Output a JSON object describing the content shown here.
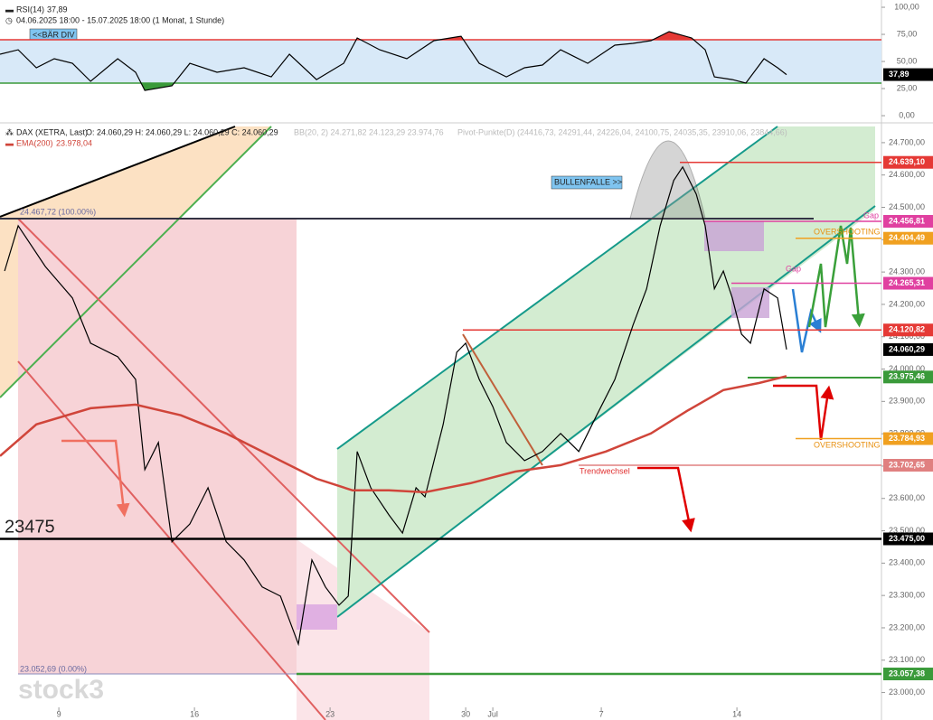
{
  "chart_data": [
    {
      "type": "line",
      "title": "RSI(14)",
      "subtitle": "04.06.2025 18:00 - 15.07.2025 18:00 (1 Monat, 1 Stunde)",
      "annotations": [
        "<<BÄR DIV"
      ],
      "xlim": [
        0.83,
        33.33
      ],
      "ylim": [
        -5.8,
        106.7
      ],
      "yticks": [
        {
          "value": 100,
          "label": "100,00"
        },
        {
          "value": 75,
          "label": "75,00"
        },
        {
          "value": 50,
          "label": "50,00"
        },
        {
          "value": 25,
          "label": "25,00"
        },
        {
          "value": 0,
          "label": "0,00"
        }
      ],
      "levels": [
        {
          "value": 70,
          "color": "#e53935"
        },
        {
          "value": 30,
          "color": "#3a9a3a"
        }
      ],
      "series": [
        {
          "name": "RSI(14)",
          "color": "#000000",
          "last_label": "37,89",
          "x": [
            0.83,
            1.5,
            2.17,
            2.83,
            3.5,
            4.17,
            5.17,
            5.83,
            6.17,
            7.17,
            7.83,
            8.83,
            9.83,
            10.83,
            11.5,
            12.5,
            13.5,
            14.0,
            14.83,
            15.83,
            16.83,
            17.83,
            18.5,
            19.5,
            20.17,
            20.83,
            21.5,
            22.5,
            23.5,
            24.17,
            24.83,
            25.5,
            26.33,
            26.83,
            27.17,
            27.83,
            28.33,
            29.0,
            29.5,
            29.83
          ],
          "values": [
            56.7,
            60.8,
            44.2,
            52.5,
            48.3,
            31.7,
            52.5,
            40,
            23.3,
            27.5,
            48.3,
            40,
            44.2,
            35.8,
            56.7,
            33.3,
            48.3,
            71.7,
            60.8,
            52.5,
            69.2,
            73.3,
            48.3,
            35.8,
            44.2,
            46.7,
            60.8,
            48.3,
            65,
            66.7,
            69.2,
            77.5,
            71.7,
            60.8,
            35.8,
            33.3,
            30,
            52.5,
            44.2,
            37.89
          ]
        }
      ]
    },
    {
      "type": "line",
      "title": "DAX (XETRA, Last)",
      "ohlc": "O: 24.060,29 H: 24.060,29 L: 24.060,29 C: 24.060,29",
      "indicators": [
        "BB(20, 2)  24.271,82  24.123,29  23.974,76",
        "Pivot-Punkte(D) (24416,73, 24291,44, 24226,04, 24100,75, 24035,35, 23910,06, 23844,66)"
      ],
      "annotations": [
        "24.467,72 (100.00%)",
        "23.052,69 (0.00%)",
        "23475",
        "BULLENFALLE >>",
        "Gap",
        "Gap",
        "OVERSHOOTING",
        "OVERSHOOTING",
        "Trendwechsel"
      ],
      "watermark": "stock3",
      "xlim": [
        0.83,
        33.33
      ],
      "xticks": [
        {
          "value": 3,
          "label": "9"
        },
        {
          "value": 8,
          "label": "16"
        },
        {
          "value": 13,
          "label": "23"
        },
        {
          "value": 18,
          "label": "30"
        },
        {
          "value": 19,
          "label": "Jul"
        },
        {
          "value": 23,
          "label": "7"
        },
        {
          "value": 28,
          "label": "14"
        }
      ],
      "ylim": [
        22915,
        24750
      ],
      "yticks": [
        {
          "value": 23000,
          "label": "23.000,00"
        },
        {
          "value": 23100,
          "label": "23.100,00"
        },
        {
          "value": 23200,
          "label": "23.200,00"
        },
        {
          "value": 23300,
          "label": "23.300,00"
        },
        {
          "value": 23400,
          "label": "23.400,00"
        },
        {
          "value": 23500,
          "label": "23.500,00"
        },
        {
          "value": 23600,
          "label": "23.600,00"
        },
        {
          "value": 23700,
          "label": "23.700,00"
        },
        {
          "value": 23800,
          "label": "23.800,00"
        },
        {
          "value": 23900,
          "label": "23.900,00"
        },
        {
          "value": 24000,
          "label": "24.000,00"
        },
        {
          "value": 24100,
          "label": "24.100,00"
        },
        {
          "value": 24200,
          "label": "24.200,00"
        },
        {
          "value": 24300,
          "label": "24.300,00"
        },
        {
          "value": 24400,
          "label": "24.400,00"
        },
        {
          "value": 24500,
          "label": "24.500,00"
        },
        {
          "value": 24600,
          "label": "24.600,00"
        },
        {
          "value": 24700,
          "label": "24.700,00"
        }
      ],
      "levels": [
        {
          "value": 24639.1,
          "label": "24.639,10",
          "color": "#e53935"
        },
        {
          "value": 24456.81,
          "label": "24.456,81",
          "color": "#e040a0"
        },
        {
          "value": 24404.49,
          "label": "24.404,49",
          "color": "#f0a020"
        },
        {
          "value": 24265.31,
          "label": "24.265,31",
          "color": "#e040a0"
        },
        {
          "value": 24120.82,
          "label": "24.120,82",
          "color": "#e53935"
        },
        {
          "value": 24060.29,
          "label": "24.060,29",
          "color": "#000000"
        },
        {
          "value": 23975.46,
          "label": "23.975,46",
          "color": "#3a9a3a"
        },
        {
          "value": 23784.93,
          "label": "23.784,93",
          "color": "#f0a020"
        },
        {
          "value": 23702.65,
          "label": "23.702,65",
          "color": "#e08080"
        },
        {
          "value": 23475.0,
          "label": "23.475,00",
          "color": "#000000"
        },
        {
          "value": 23057.38,
          "label": "23.057,38",
          "color": "#3a9a3a"
        }
      ],
      "series": [
        {
          "name": "DAX (XETRA, Last)",
          "color": "#000000",
          "x": [
            1.0,
            1.5,
            2.5,
            3.5,
            4.17,
            5.17,
            5.83,
            6.17,
            6.67,
            7.17,
            7.83,
            8.5,
            9.17,
            9.83,
            10.5,
            11.17,
            11.83,
            12.33,
            12.83,
            13.33,
            13.67,
            14.0,
            14.5,
            15.17,
            15.67,
            16.17,
            16.5,
            17.17,
            17.67,
            18.0,
            18.5,
            19.0,
            19.5,
            20.17,
            20.83,
            21.5,
            22.17,
            22.83,
            23.5,
            24.17,
            24.67,
            25.17,
            25.67,
            26.0,
            26.5,
            26.83,
            27.17,
            27.5,
            27.83,
            28.17,
            28.5,
            29.0,
            29.5,
            29.83
          ],
          "values": [
            24303,
            24443,
            24317,
            24220,
            24080,
            24038,
            23968,
            23689,
            23773,
            23466,
            23521,
            23633,
            23466,
            23410,
            23326,
            23298,
            23150,
            23410,
            23326,
            23270,
            23298,
            23745,
            23633,
            23549,
            23493,
            23633,
            23605,
            23829,
            24052,
            24080,
            23968,
            23884,
            23773,
            23717,
            23745,
            23801,
            23745,
            23857,
            23968,
            24136,
            24248,
            24443,
            24583,
            24625,
            24541,
            24443,
            24248,
            24303,
            24220,
            24108,
            24080,
            24248,
            24220,
            24060.29
          ]
        },
        {
          "name": "EMA(200)",
          "color": "#d0453a",
          "last_label": "23.978,04",
          "x": [
            0.83,
            2.17,
            4.17,
            5.83,
            7.5,
            9.17,
            10.83,
            12.5,
            13.83,
            15.17,
            16.5,
            18.17,
            19.83,
            21.5,
            23.17,
            24.83,
            26.17,
            27.5,
            28.83,
            29.83
          ],
          "values": [
            23731,
            23829,
            23879,
            23890,
            23857,
            23801,
            23731,
            23661,
            23625,
            23625,
            23619,
            23647,
            23683,
            23703,
            23745,
            23801,
            23871,
            23935,
            23957,
            23978.04
          ]
        }
      ]
    }
  ]
}
